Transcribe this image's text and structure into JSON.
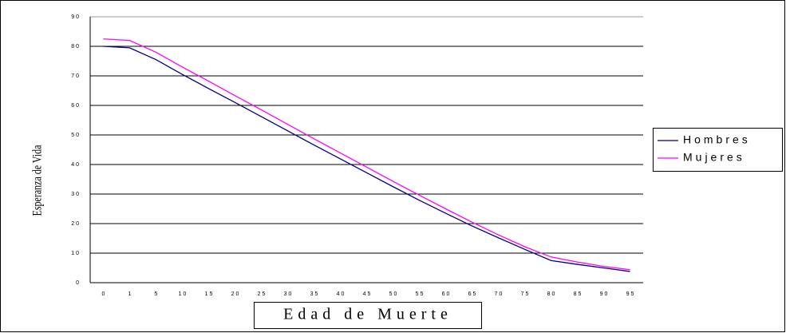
{
  "chart_data": {
    "type": "line",
    "xlabel": "Edad de Muerte",
    "ylabel": "Esperanza de Vida",
    "categories": [
      "0",
      "1",
      "5",
      "10",
      "15",
      "20",
      "25",
      "30",
      "35",
      "40",
      "45",
      "50",
      "55",
      "60",
      "65",
      "70",
      "75",
      "80",
      "85",
      "90",
      "95"
    ],
    "series": [
      {
        "name": "Hombres",
        "color": "#000080",
        "values": [
          80,
          79.5,
          75.5,
          70.5,
          65.7,
          61,
          56.2,
          51.4,
          46.6,
          41.9,
          37.2,
          32.5,
          27.9,
          23.5,
          19.2,
          15.2,
          11.3,
          7.5,
          6.2,
          5,
          3.8
        ]
      },
      {
        "name": "Mujeres",
        "color": "#ff00ff",
        "values": [
          82.5,
          82,
          78,
          73,
          68.2,
          63.3,
          58.5,
          53.6,
          48.7,
          43.9,
          39.1,
          34.3,
          29.6,
          25,
          20.5,
          16.2,
          12.2,
          8.7,
          7,
          5.5,
          4.4
        ]
      }
    ],
    "ylim": [
      0,
      90
    ],
    "yticks": [
      0,
      10,
      20,
      30,
      40,
      50,
      60,
      70,
      80,
      90
    ],
    "grid": true,
    "legend": "right"
  }
}
